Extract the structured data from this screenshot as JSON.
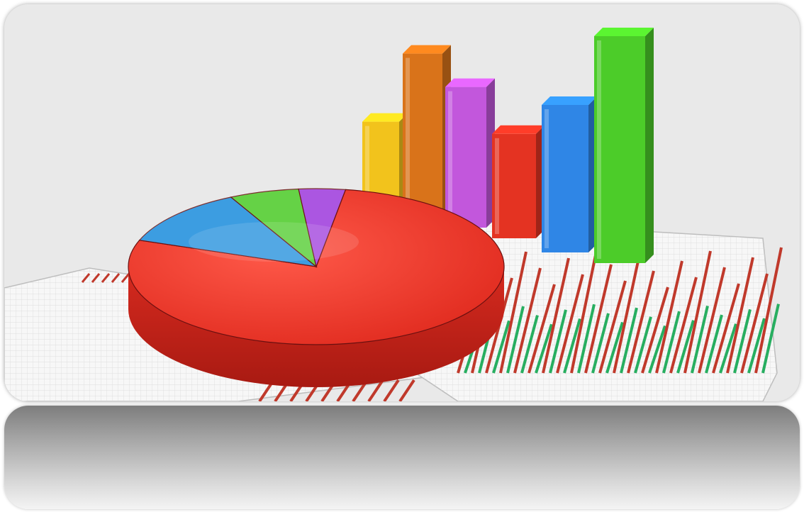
{
  "scene": {
    "colors": {
      "background": "#e9e9e9",
      "paper": "#f6f6f6",
      "grid": "#cfcfcf",
      "stripe_red": "#c0392b",
      "stripe_green": "#27ae60",
      "pie_main": "#e8342a",
      "pie_blue": "#1e90e0",
      "pie_green": "#4fcf2a",
      "pie_purple": "#a13de0"
    },
    "bars": [
      {
        "color": "#f2c31c",
        "level": 0.42
      },
      {
        "color": "#d9731a",
        "level": 0.72
      },
      {
        "color": "#c257dc",
        "level": 0.62
      },
      {
        "color": "#e43322",
        "level": 0.46
      },
      {
        "color": "#2f86e6",
        "level": 0.65
      },
      {
        "color": "#4ccc29",
        "level": 1.0
      }
    ],
    "pie": {
      "slices": [
        {
          "color": "#e8342a",
          "fraction": 0.78
        },
        {
          "color": "#1e90e0",
          "fraction": 0.12
        },
        {
          "color": "#4fcf2a",
          "fraction": 0.06
        },
        {
          "color": "#a13de0",
          "fraction": 0.04
        }
      ]
    }
  }
}
